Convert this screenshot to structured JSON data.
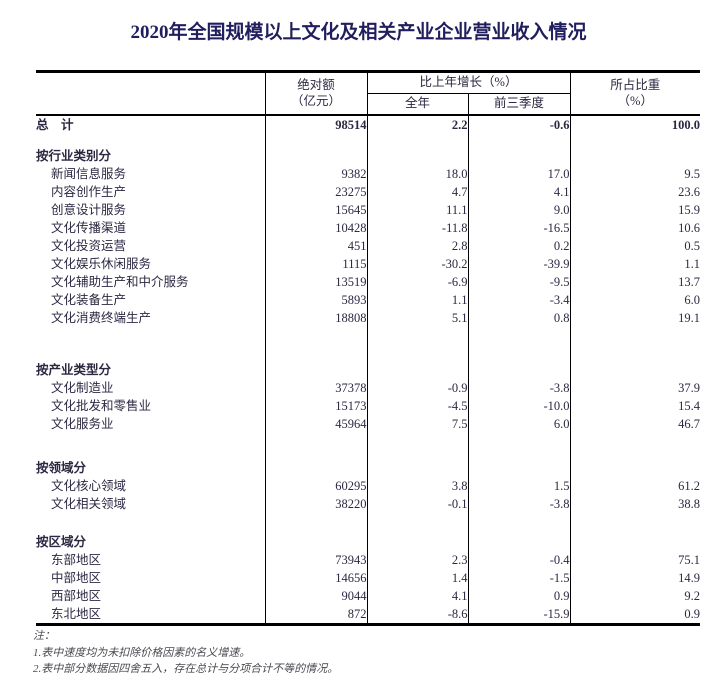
{
  "title": "2020年全国规模以上文化及相关产业企业营业收入情况",
  "table": {
    "headers": {
      "absolute": "绝对额",
      "absolute_unit": "（亿元）",
      "growth": "比上年增长（%）",
      "full_year": "全年",
      "first_three_quarters": "前三季度",
      "share": "所占比重",
      "share_unit": "（%）"
    },
    "total": {
      "label": "总　计",
      "abs": "98514",
      "full": "2.2",
      "q3": "-0.6",
      "share": "100.0"
    },
    "sections": [
      {
        "header": "按行业类别分",
        "rows": [
          {
            "label": "新闻信息服务",
            "abs": "9382",
            "full": "18.0",
            "q3": "17.0",
            "share": "9.5"
          },
          {
            "label": "内容创作生产",
            "abs": "23275",
            "full": "4.7",
            "q3": "4.1",
            "share": "23.6"
          },
          {
            "label": "创意设计服务",
            "abs": "15645",
            "full": "11.1",
            "q3": "9.0",
            "share": "15.9"
          },
          {
            "label": "文化传播渠道",
            "abs": "10428",
            "full": "-11.8",
            "q3": "-16.5",
            "share": "10.6"
          },
          {
            "label": "文化投资运营",
            "abs": "451",
            "full": "2.8",
            "q3": "0.2",
            "share": "0.5"
          },
          {
            "label": "文化娱乐休闲服务",
            "abs": "1115",
            "full": "-30.2",
            "q3": "-39.9",
            "share": "1.1"
          },
          {
            "label": "文化辅助生产和中介服务",
            "abs": "13519",
            "full": "-6.9",
            "q3": "-9.5",
            "share": "13.7"
          },
          {
            "label": "文化装备生产",
            "abs": "5893",
            "full": "1.1",
            "q3": "-3.4",
            "share": "6.0"
          },
          {
            "label": "文化消费终端生产",
            "abs": "18808",
            "full": "5.1",
            "q3": "0.8",
            "share": "19.1"
          }
        ]
      },
      {
        "header": "按产业类型分",
        "rows": [
          {
            "label": "文化制造业",
            "abs": "37378",
            "full": "-0.9",
            "q3": "-3.8",
            "share": "37.9"
          },
          {
            "label": "文化批发和零售业",
            "abs": "15173",
            "full": "-4.5",
            "q3": "-10.0",
            "share": "15.4"
          },
          {
            "label": "文化服务业",
            "abs": "45964",
            "full": "7.5",
            "q3": "6.0",
            "share": "46.7"
          }
        ]
      },
      {
        "header": "按领域分",
        "rows": [
          {
            "label": "文化核心领域",
            "abs": "60295",
            "full": "3.8",
            "q3": "1.5",
            "share": "61.2"
          },
          {
            "label": "文化相关领域",
            "abs": "38220",
            "full": "-0.1",
            "q3": "-3.8",
            "share": "38.8"
          }
        ]
      },
      {
        "header": "按区域分",
        "rows": [
          {
            "label": "东部地区",
            "abs": "73943",
            "full": "2.3",
            "q3": "-0.4",
            "share": "75.1"
          },
          {
            "label": "中部地区",
            "abs": "14656",
            "full": "1.4",
            "q3": "-1.5",
            "share": "14.9"
          },
          {
            "label": "西部地区",
            "abs": "9044",
            "full": "4.1",
            "q3": "0.9",
            "share": "9.2"
          },
          {
            "label": "东北地区",
            "abs": "872",
            "full": "-8.6",
            "q3": "-15.9",
            "share": "0.9"
          }
        ]
      }
    ]
  },
  "notes": {
    "label": "注：",
    "items": [
      "1.表中速度均为未扣除价格因素的名义增速。",
      "2.表中部分数据因四舍五入，存在总计与分项合计不等的情况。"
    ]
  },
  "colors": {
    "title_ink": "#211e5e",
    "body_ink": "#2c2842",
    "border": "#000000",
    "note_ink": "#4c4a50",
    "background": "#ffffff"
  }
}
